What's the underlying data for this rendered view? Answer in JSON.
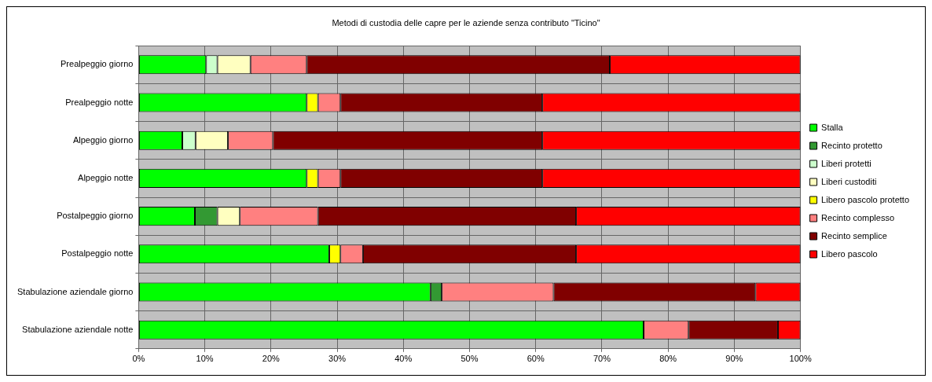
{
  "chart_data": {
    "type": "bar",
    "orientation": "horizontal",
    "stacked": true,
    "title": "Metodi di custodia delle capre per le aziende senza contributo \"Ticino\"",
    "categories": [
      "Prealpeggio giorno",
      "Prealpeggio notte",
      "Alpeggio giorno",
      "Alpeggio notte",
      "Postalpeggio giorno",
      "Postalpeggio notte",
      "Stabulazione aziendale giorno",
      "Stabulazione aziendale notte"
    ],
    "series": [
      {
        "name": "Stalla",
        "color": "#00ff00",
        "values": [
          10.2,
          25.4,
          6.6,
          25.4,
          8.5,
          28.8,
          44.1,
          76.3
        ]
      },
      {
        "name": "Recinto protetto",
        "color": "#339933",
        "values": [
          0,
          0,
          0,
          0,
          3.4,
          0,
          1.7,
          0
        ]
      },
      {
        "name": "Liberi protetti",
        "color": "#ccffcc",
        "values": [
          1.7,
          0,
          2.0,
          0,
          0,
          0,
          0,
          0
        ]
      },
      {
        "name": "Liberi custoditi",
        "color": "#ffffc0",
        "values": [
          5.0,
          0,
          4.9,
          0,
          3.4,
          0,
          0,
          0
        ]
      },
      {
        "name": "Libero pascolo protetto",
        "color": "#ffff00",
        "values": [
          0,
          1.7,
          0,
          1.7,
          0,
          1.7,
          0,
          0
        ]
      },
      {
        "name": "Recinto complesso",
        "color": "#ff8080",
        "values": [
          8.5,
          3.4,
          6.8,
          3.4,
          11.8,
          3.4,
          16.9,
          6.8
        ]
      },
      {
        "name": "Recinto semplice",
        "color": "#800000",
        "values": [
          45.8,
          30.5,
          40.7,
          30.5,
          39.0,
          32.2,
          30.5,
          13.5
        ]
      },
      {
        "name": "Libero pascolo",
        "color": "#ff0000",
        "values": [
          28.8,
          39.0,
          39.0,
          39.0,
          33.9,
          33.9,
          6.8,
          3.4
        ]
      }
    ],
    "xlim": [
      0,
      100
    ],
    "xticks": [
      {
        "value": 0,
        "label": "0%"
      },
      {
        "value": 10,
        "label": "10%"
      },
      {
        "value": 20,
        "label": "20%"
      },
      {
        "value": 30,
        "label": "30%"
      },
      {
        "value": 40,
        "label": "40%"
      },
      {
        "value": 50,
        "label": "50%"
      },
      {
        "value": 60,
        "label": "60%"
      },
      {
        "value": 70,
        "label": "70%"
      },
      {
        "value": 80,
        "label": "80%"
      },
      {
        "value": 90,
        "label": "90%"
      },
      {
        "value": 100,
        "label": "100%"
      }
    ],
    "grid": true,
    "legend": "right"
  }
}
